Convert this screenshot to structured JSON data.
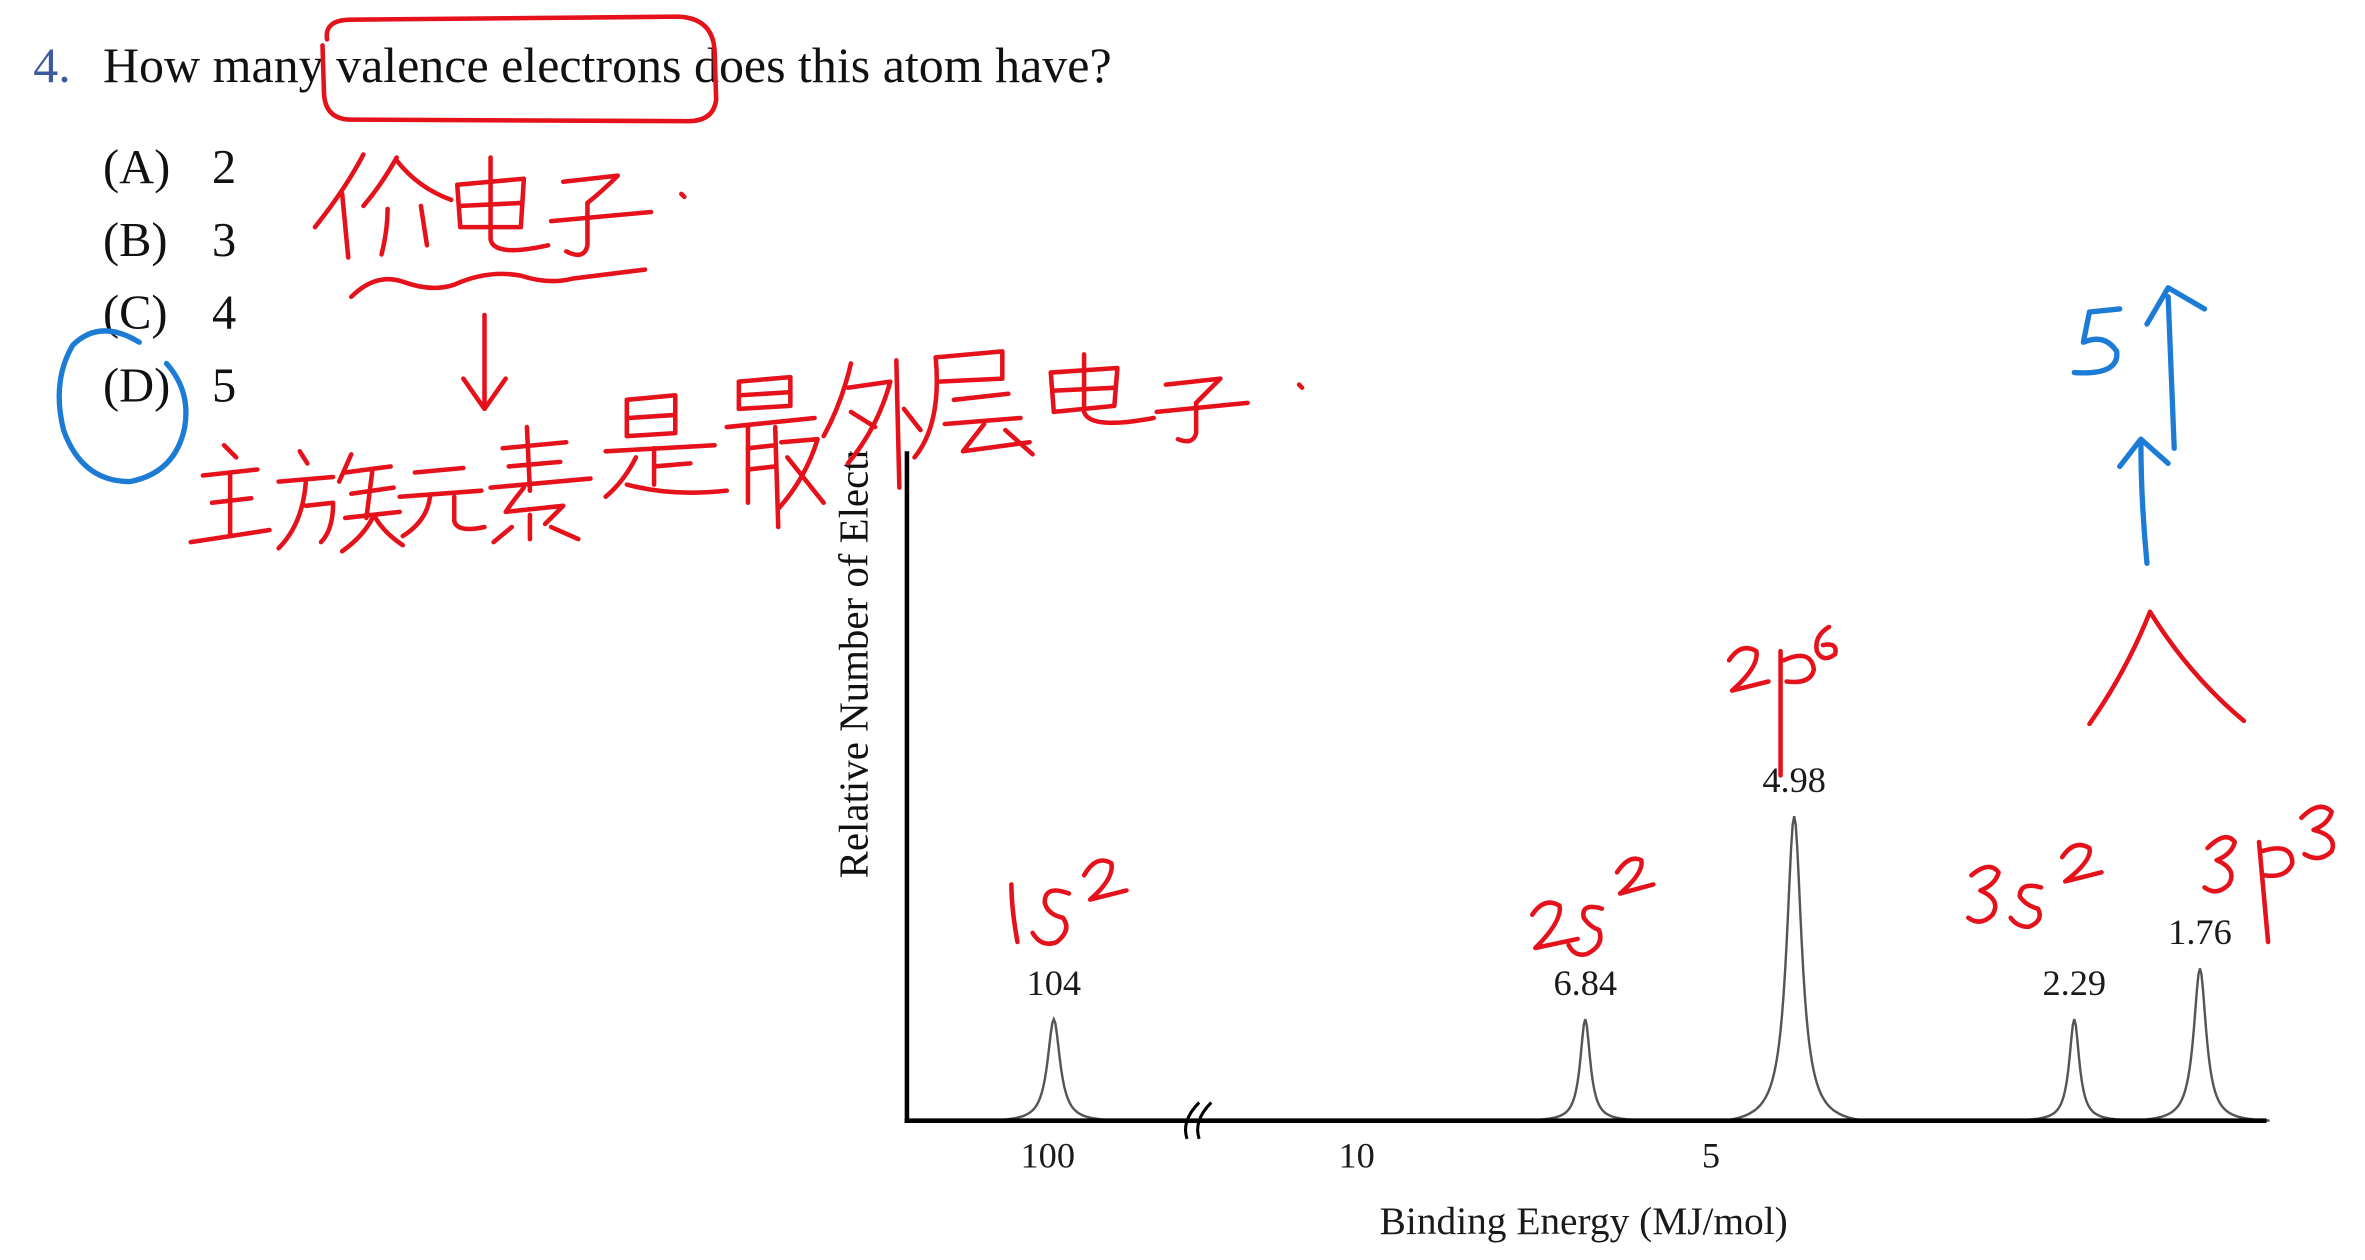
{
  "question": {
    "number": "4.",
    "text": "How many valence electrons does this atom have?"
  },
  "options": [
    {
      "label": "(A)",
      "value": "2"
    },
    {
      "label": "(B)",
      "value": "3"
    },
    {
      "label": "(C)",
      "value": "4"
    },
    {
      "label": "(D)",
      "value": "5"
    }
  ],
  "chart_data": {
    "type": "line",
    "title": "",
    "xlabel": "Binding Energy (MJ/mol)",
    "ylabel": "Relative Number of Electr",
    "x_tick_labels": [
      "100",
      "10",
      "5"
    ],
    "x_axis_break": true,
    "x_direction": "decreasing",
    "x": [
      104,
      6.84,
      4.98,
      2.29,
      1.76
    ],
    "y": [
      2,
      2,
      6,
      2,
      3
    ],
    "data_labels": [
      "104",
      "6.84",
      "4.98",
      "2.29",
      "1.76"
    ],
    "grid": false,
    "legend": "none"
  },
  "handwritten_notes": {
    "red": {
      "note_1": "价电子.",
      "note_2": "主族元素是最外层电子.",
      "orbitals": [
        "1s²",
        "2s²",
        "2p⁶",
        "3s²",
        "3p³"
      ]
    },
    "blue": {
      "note": "5个",
      "circled_option": "(D)"
    }
  },
  "colors": {
    "question_number": "#3a5c9e",
    "text": "#111111",
    "annotation_red": "#e5121b",
    "annotation_blue": "#1c7cd5",
    "axis": "#000000",
    "peak_line": "#555555"
  }
}
